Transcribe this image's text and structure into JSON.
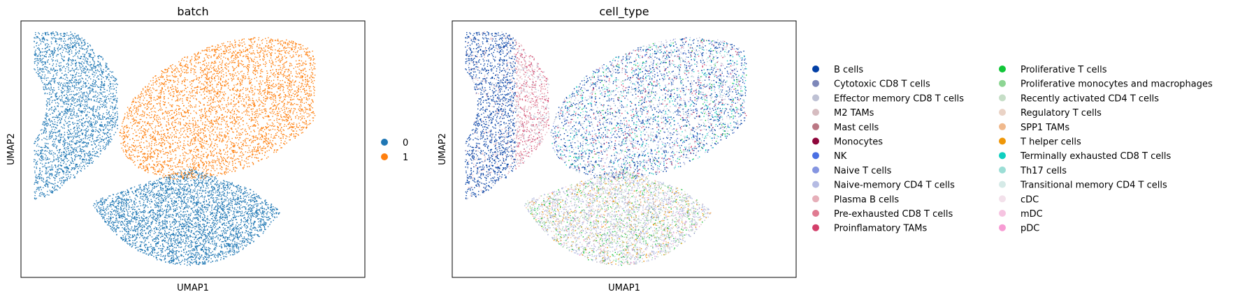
{
  "chart_data": [
    {
      "type": "scatter",
      "title": "batch",
      "xlabel": "UMAP1",
      "ylabel": "UMAP2",
      "grid": false,
      "axis_ticks": false,
      "legend_position": "right",
      "categories": [
        "0",
        "1"
      ],
      "colors": [
        "#1f77b4",
        "#ff7f0e"
      ]
    },
    {
      "type": "scatter",
      "title": "cell_type",
      "xlabel": "UMAP1",
      "ylabel": "UMAP2",
      "grid": false,
      "axis_ticks": false,
      "legend_position": "right",
      "legend_columns": 2,
      "categories": [
        "B cells",
        "Cytotoxic CD8 T cells",
        "Effector memory CD8 T cells",
        "M2 TAMs",
        "Mast cells",
        "Monocytes",
        "NK",
        "Naive T cells",
        "Naive-memory CD4 T cells",
        "Plasma B cells",
        "Pre-exhausted CD8 T cells",
        "Proinflamatory TAMs",
        "Proliferative T cells",
        "Proliferative monocytes and macrophages",
        "Recently activated CD4 T cells",
        "Regulatory T cells",
        "SPP1 TAMs",
        "T helper cells",
        "Terminally exhausted CD8 T cells",
        "Th17 cells",
        "Transitional memory CD4 T cells",
        "cDC",
        "mDC",
        "pDC"
      ],
      "colors": [
        "#023fa5",
        "#7d87b9",
        "#bec1d4",
        "#d6bcc0",
        "#bb7784",
        "#8e063b",
        "#4a6fe3",
        "#8595e1",
        "#b5bbe3",
        "#e6afb9",
        "#e07b91",
        "#d33f6a",
        "#11c638",
        "#8dd593",
        "#c6dec7",
        "#ead3c6",
        "#f0b98d",
        "#ef9708",
        "#0fcfc0",
        "#9cded6",
        "#d5eae7",
        "#f3e1eb",
        "#f6c4e1",
        "#f79cd4"
      ]
    }
  ]
}
